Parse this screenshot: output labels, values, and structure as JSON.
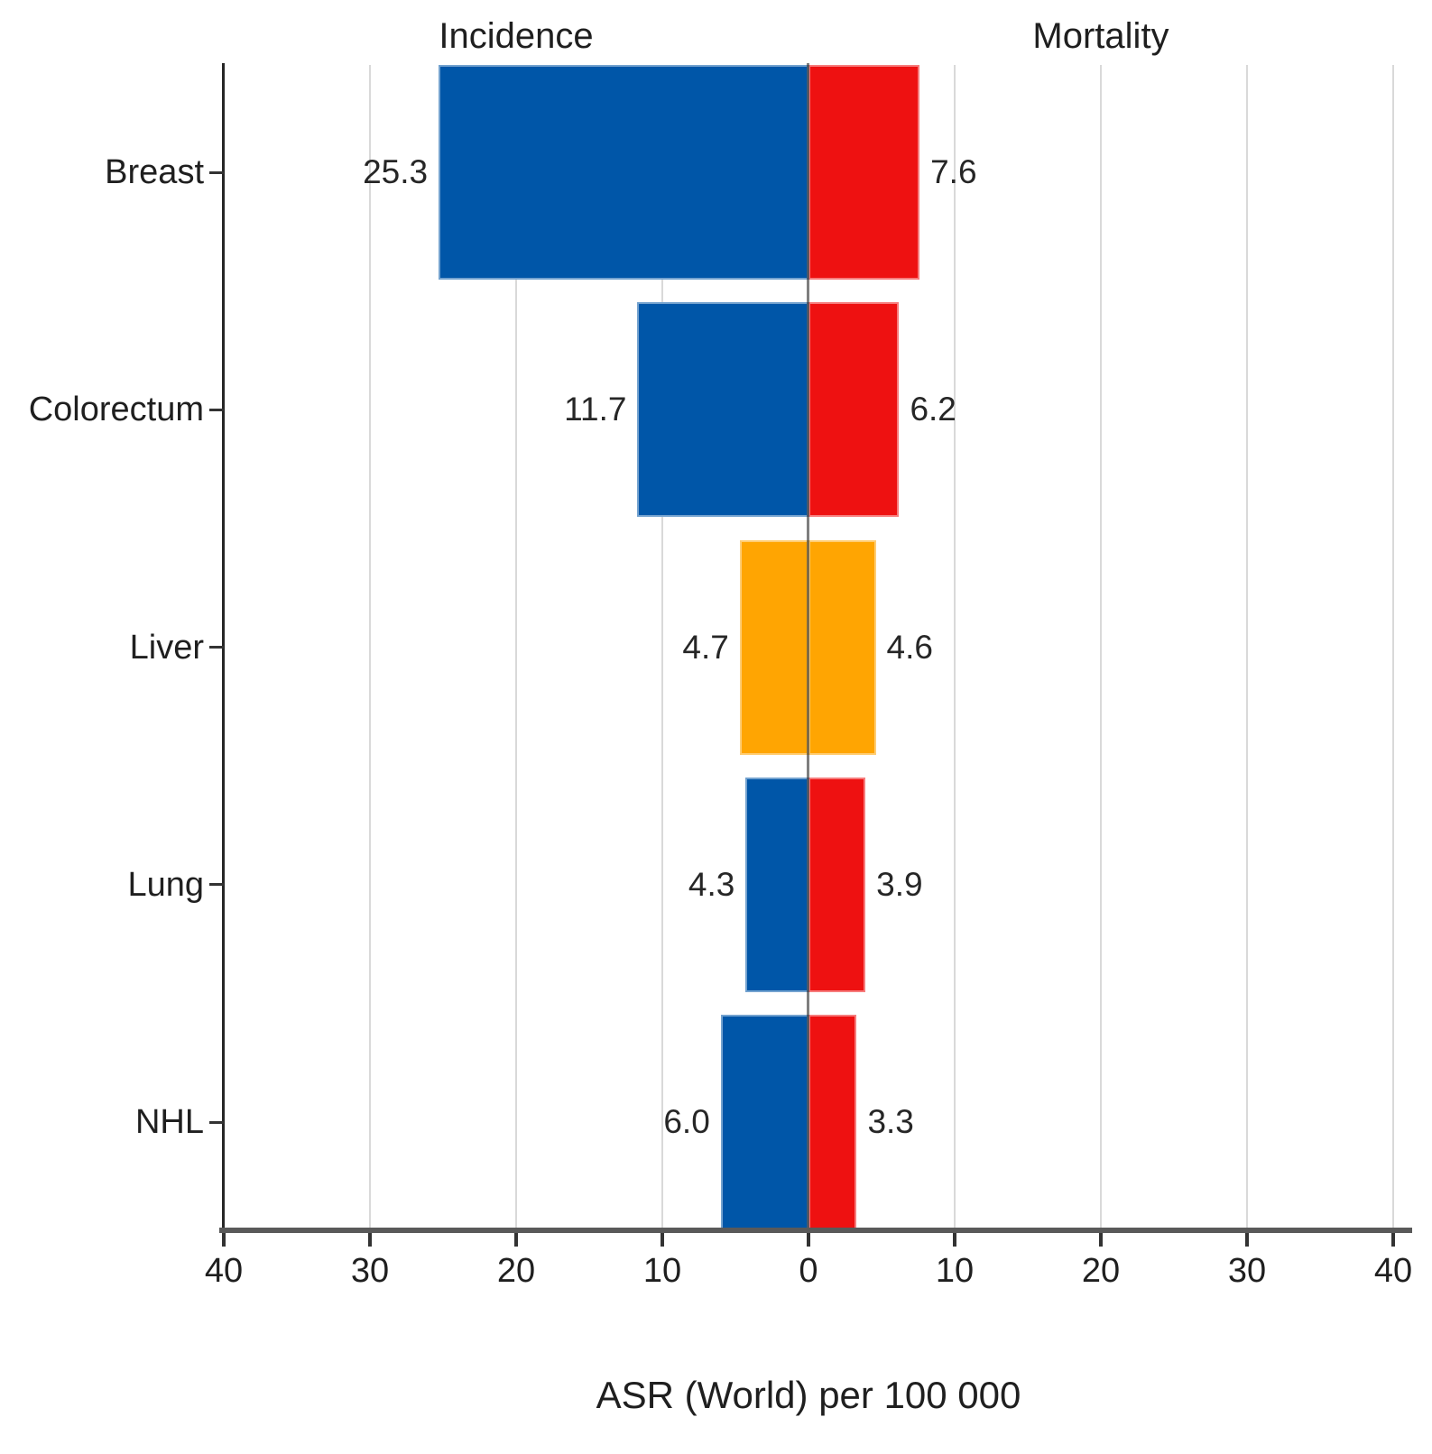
{
  "chart_data": {
    "type": "bar",
    "variant": "diverging-horizontal",
    "title": "",
    "left_header": "Incidence",
    "right_header": "Mortality",
    "xlabel": "ASR (World) per 100 000",
    "categories": [
      "Breast",
      "Colorectum",
      "Liver",
      "Lung",
      "NHL"
    ],
    "series": [
      {
        "name": "Incidence",
        "side": "left",
        "color": "#0056a8",
        "values": [
          25.3,
          11.7,
          4.7,
          4.3,
          6.0
        ],
        "labels": [
          "25.3",
          "11.7",
          "4.7",
          "4.3",
          "6.0"
        ]
      },
      {
        "name": "Mortality",
        "side": "right",
        "color": "#ee1111",
        "values": [
          7.6,
          6.2,
          4.6,
          3.9,
          3.3
        ],
        "labels": [
          "7.6",
          "6.2",
          "4.6",
          "3.9",
          "3.3"
        ]
      }
    ],
    "bar_color_overrides": [
      {
        "category": "Liver",
        "color": "#ffa502"
      }
    ],
    "x_ticks": [
      -40,
      -30,
      -20,
      -10,
      0,
      10,
      20,
      30,
      40
    ],
    "x_tick_labels": [
      "40",
      "30",
      "20",
      "10",
      "0",
      "10",
      "20",
      "30",
      "40"
    ],
    "xlim": [
      -40,
      40
    ],
    "grid": true,
    "value_labels": "outside-bar-ends",
    "colors": {
      "grid": "#d9d9d9",
      "axis_line": "#595959",
      "spine": "#262626",
      "text": "#1f1f1f"
    }
  }
}
